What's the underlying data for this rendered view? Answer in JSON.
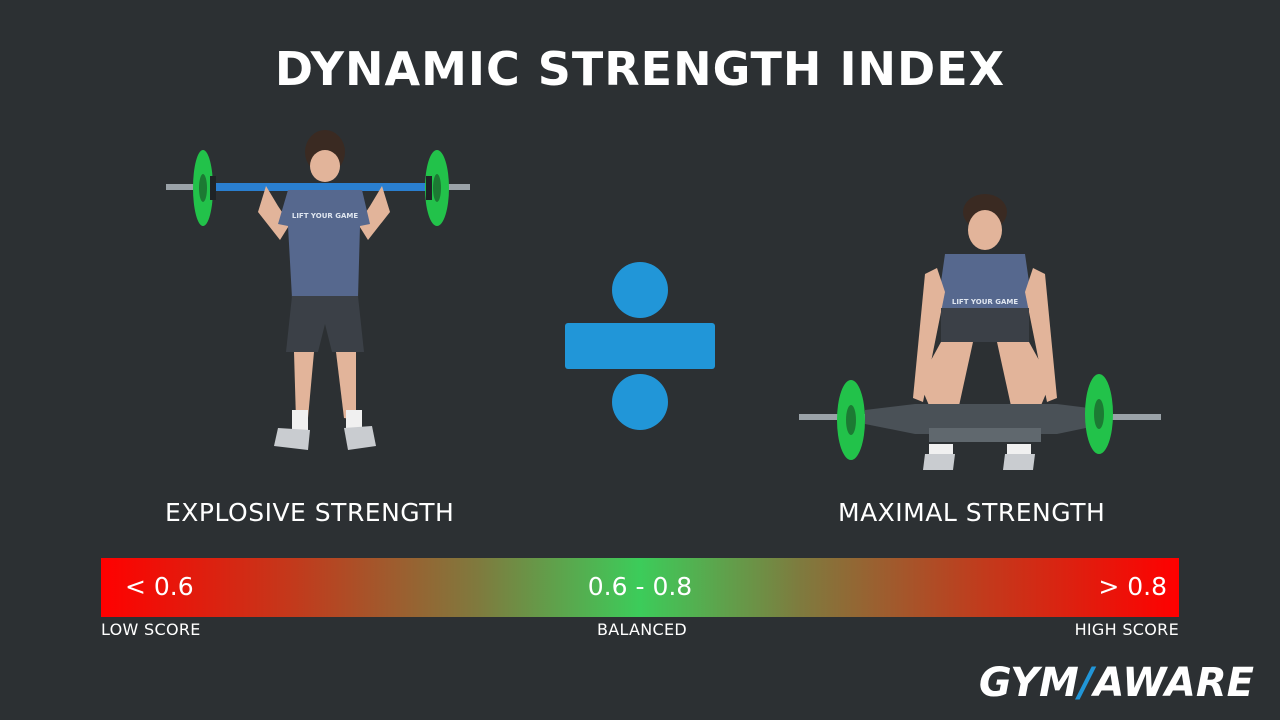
{
  "title": "DYNAMIC STRENGTH INDEX",
  "left": {
    "label": "EXPLOSIVE STRENGTH",
    "image": "athlete-overhead-barbell-jump"
  },
  "right": {
    "label": "MAXIMAL STRENGTH",
    "image": "athlete-trap-bar-deadlift"
  },
  "operator_icon": "divide-icon",
  "scale": {
    "low_value": "< 0.6",
    "mid_value": "0.6 - 0.8",
    "high_value": "> 0.8",
    "low_caption": "LOW SCORE",
    "mid_caption": "BALANCED",
    "high_caption": "HIGH SCORE"
  },
  "logo": {
    "part1": "GYM",
    "slash": "/",
    "part2": "AWARE"
  },
  "colors": {
    "background": "#2c3033",
    "accent_blue": "#2196d8",
    "low_red": "#ff0000",
    "balanced_green": "#3ccc5a",
    "plate_green": "#22c24a"
  }
}
